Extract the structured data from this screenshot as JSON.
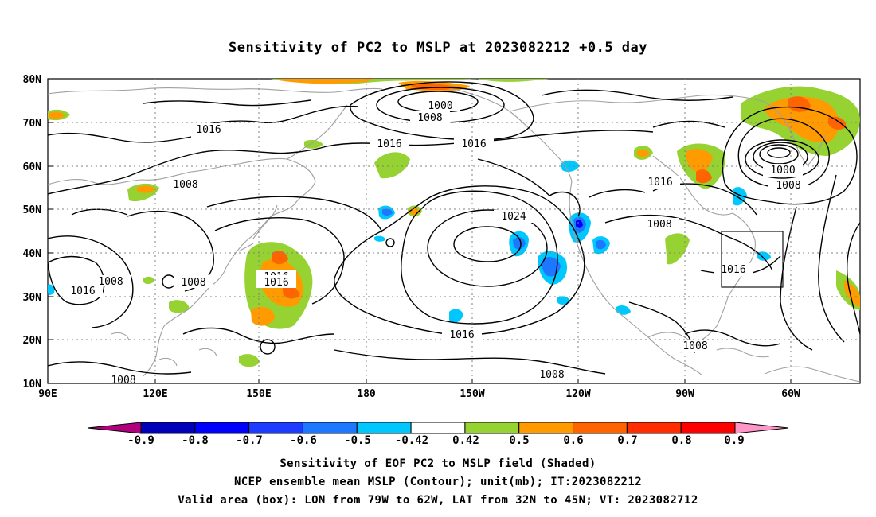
{
  "title": "Sensitivity of PC2 to MSLP at 2023082212 +0.5 day",
  "lat_labels": [
    "80N",
    "70N",
    "60N",
    "50N",
    "40N",
    "30N",
    "20N",
    "10N"
  ],
  "lon_labels": [
    "90E",
    "120E",
    "150E",
    "180",
    "150W",
    "120W",
    "90W",
    "60W"
  ],
  "contour_labels": [
    {
      "text": "1000",
      "kind": "low"
    },
    {
      "text": "1008",
      "kind": "ring"
    },
    {
      "text": "1016",
      "kind": "ring"
    },
    {
      "text": "1016",
      "kind": "ring"
    },
    {
      "text": "1016",
      "kind": "ring"
    },
    {
      "text": "1008",
      "kind": "ring"
    },
    {
      "text": "1024",
      "kind": "high"
    },
    {
      "text": "1016",
      "kind": "ring"
    },
    {
      "text": "1016",
      "kind": "ring"
    },
    {
      "text": "1008",
      "kind": "ring"
    },
    {
      "text": "1000",
      "kind": "low"
    },
    {
      "text": "1008",
      "kind": "ring"
    },
    {
      "text": "1016",
      "kind": "ring"
    },
    {
      "text": "1016",
      "kind": "ring"
    },
    {
      "text": "1008",
      "kind": "ring"
    },
    {
      "text": "1016",
      "kind": "ring"
    },
    {
      "text": "1008",
      "kind": "ring"
    },
    {
      "text": "1008",
      "kind": "ring"
    },
    {
      "text": "1016",
      "kind": "ring"
    },
    {
      "text": "1016",
      "kind": "ring"
    },
    {
      "text": "1008",
      "kind": "ring"
    },
    {
      "text": "1008",
      "kind": "ring"
    },
    {
      "text": "1008",
      "kind": "ring"
    }
  ],
  "colorbar": {
    "labels": [
      "-0.9",
      "-0.8",
      "-0.7",
      "-0.6",
      "-0.5",
      "-0.42",
      "0.42",
      "0.5",
      "0.6",
      "0.7",
      "0.8",
      "0.9"
    ],
    "colors": [
      "#b0007d",
      "#0000b8",
      "#0000ff",
      "#1e3cff",
      "#1e78ff",
      "#00c8ff",
      "#ffffff",
      "#96d232",
      "#ff9b00",
      "#ff6400",
      "#ff2d00",
      "#ff0000",
      "#ff96c8"
    ]
  },
  "colors": {
    "contour": "#000000",
    "coast": "#a0a0a0",
    "grid": "#808080",
    "box": "#000000"
  },
  "captions": [
    "Sensitivity of EOF PC2 to MSLP field (Shaded)",
    "NCEP ensemble mean MSLP (Contour); unit(mb); IT:2023082212",
    "Valid area (box): LON from 79W to 62W, LAT from 32N to 45N; VT: 2023082712"
  ]
}
